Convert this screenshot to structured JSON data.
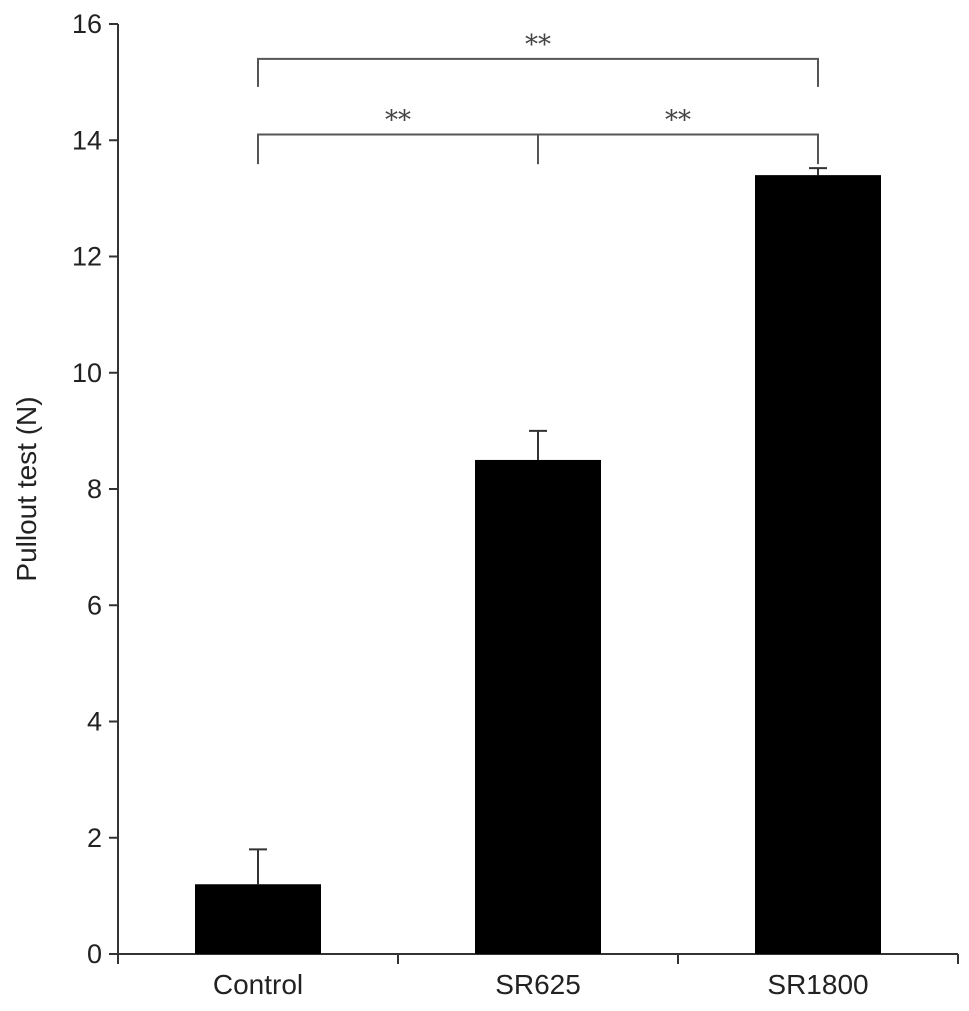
{
  "chart_data": {
    "type": "bar",
    "title": "",
    "xlabel": "",
    "ylabel": "Pullout test (N)",
    "ylim": [
      0,
      16
    ],
    "yticks": [
      0,
      2,
      4,
      6,
      8,
      10,
      12,
      14,
      16
    ],
    "ytick_labels": [
      "0",
      "2",
      "4",
      "6",
      "8",
      "10",
      "12",
      "14",
      "16"
    ],
    "categories": [
      "Control",
      "SR625",
      "SR1800"
    ],
    "values": [
      1.2,
      8.5,
      13.4
    ],
    "errors": [
      0.6,
      0.5,
      0.12
    ],
    "bar_color": "#000000",
    "grid": false,
    "legend": "none",
    "significance": [
      {
        "from": 0,
        "to": 2,
        "label": "**",
        "level": 15.4
      },
      {
        "from": 0,
        "to": 1,
        "label": "**",
        "level": 14.1
      },
      {
        "from": 1,
        "to": 2,
        "label": "**",
        "level": 14.1
      }
    ]
  }
}
